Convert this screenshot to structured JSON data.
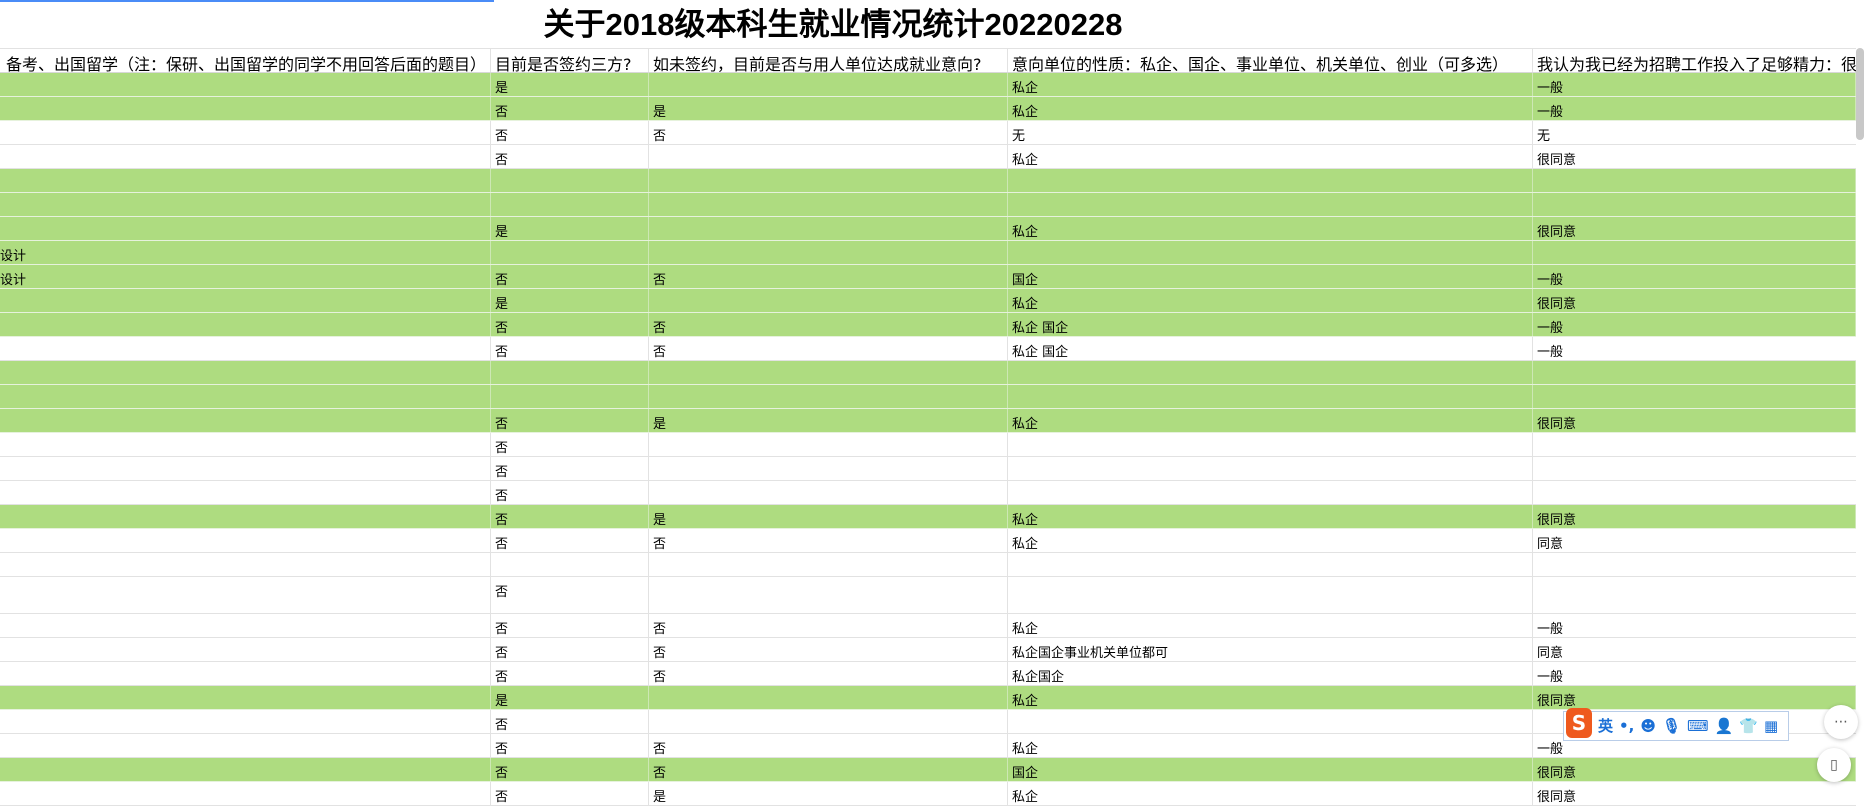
{
  "title": "关于2018级本科生就业情况统计20220228",
  "colors": {
    "highlight_row": "#aedc80",
    "accent": "#4a8cf7",
    "ime_brand": "#ef5a1e"
  },
  "headers": [
    "备考、出国留学（注：保研、出国留学的同学不用回答后面的题目）",
    "目前是否签约三方?",
    "如未签约，目前是否与用人单位达成就业意向?",
    "意向单位的性质：私企、国企、事业单位、机关单位、创业（可多选）",
    "我认为我已经为招聘工作投入了足够精力：很"
  ],
  "rows": [
    {
      "green": true,
      "cells": [
        "",
        "是",
        "",
        "私企",
        "一般"
      ]
    },
    {
      "green": true,
      "cells": [
        "",
        "否",
        "是",
        "私企",
        "一般"
      ]
    },
    {
      "green": false,
      "cells": [
        "",
        "否",
        "否",
        "无",
        "无"
      ]
    },
    {
      "green": false,
      "cells": [
        "",
        "否",
        "",
        "私企",
        "很同意"
      ]
    },
    {
      "green": true,
      "cells": [
        "",
        "",
        "",
        "",
        ""
      ]
    },
    {
      "green": true,
      "cells": [
        "",
        "",
        "",
        "",
        ""
      ]
    },
    {
      "green": true,
      "cells": [
        "",
        "是",
        "",
        "私企",
        "很同意"
      ]
    },
    {
      "green": true,
      "cells": [
        "设计",
        "",
        "",
        "",
        ""
      ]
    },
    {
      "green": true,
      "cells": [
        "设计",
        "否",
        "否",
        "国企",
        "一般"
      ]
    },
    {
      "green": true,
      "cells": [
        "",
        "是",
        "",
        "私企",
        "很同意"
      ]
    },
    {
      "green": true,
      "cells": [
        "",
        "否",
        "否",
        "私企 国企",
        "一般"
      ]
    },
    {
      "green": false,
      "cells": [
        "",
        "否",
        "否",
        "私企 国企",
        "一般"
      ]
    },
    {
      "green": true,
      "cells": [
        "",
        "",
        "",
        "",
        ""
      ]
    },
    {
      "green": true,
      "cells": [
        "",
        "",
        "",
        "",
        ""
      ]
    },
    {
      "green": true,
      "cells": [
        "",
        "否",
        "是",
        "私企",
        "很同意"
      ]
    },
    {
      "green": false,
      "cells": [
        "",
        "否",
        "",
        "",
        ""
      ]
    },
    {
      "green": false,
      "cells": [
        "",
        "否",
        "",
        "",
        ""
      ]
    },
    {
      "green": false,
      "cells": [
        "",
        "否",
        "",
        "",
        ""
      ]
    },
    {
      "green": true,
      "cells": [
        "",
        "否",
        "是",
        "私企",
        "很同意"
      ]
    },
    {
      "green": false,
      "cells": [
        "",
        "否",
        "否",
        "私企",
        "同意"
      ]
    },
    {
      "green": false,
      "cells": [
        "",
        "",
        "",
        "",
        ""
      ]
    },
    {
      "green": false,
      "tall": true,
      "cells": [
        "",
        "否",
        "",
        "",
        ""
      ]
    },
    {
      "green": false,
      "cells": [
        "",
        "否",
        "否",
        "私企",
        "一般"
      ]
    },
    {
      "green": false,
      "cells": [
        "",
        "否",
        "否",
        "私企国企事业机关单位都可",
        "同意"
      ]
    },
    {
      "green": false,
      "cells": [
        "",
        "否",
        "否",
        "私企国企",
        "一般"
      ]
    },
    {
      "green": true,
      "cells": [
        "",
        "是",
        "",
        "私企",
        "很同意"
      ]
    },
    {
      "green": false,
      "cells": [
        "",
        "否",
        "",
        "",
        ""
      ]
    },
    {
      "green": false,
      "cells": [
        "",
        "否",
        "否",
        "私企",
        "一般"
      ]
    },
    {
      "green": true,
      "cells": [
        "",
        "否",
        "否",
        "国企",
        "很同意"
      ]
    },
    {
      "green": false,
      "cells": [
        "",
        "否",
        "是",
        "私企",
        "很同意"
      ]
    }
  ],
  "ime": {
    "logo": "S",
    "mode": "英",
    "punct": "•,",
    "icons": [
      "emoji-icon",
      "microphone-icon",
      "keyboard-icon",
      "user-icon",
      "skin-icon",
      "toolbox-icon"
    ]
  },
  "fabs": {
    "more": "⋯",
    "panel": "▯"
  }
}
